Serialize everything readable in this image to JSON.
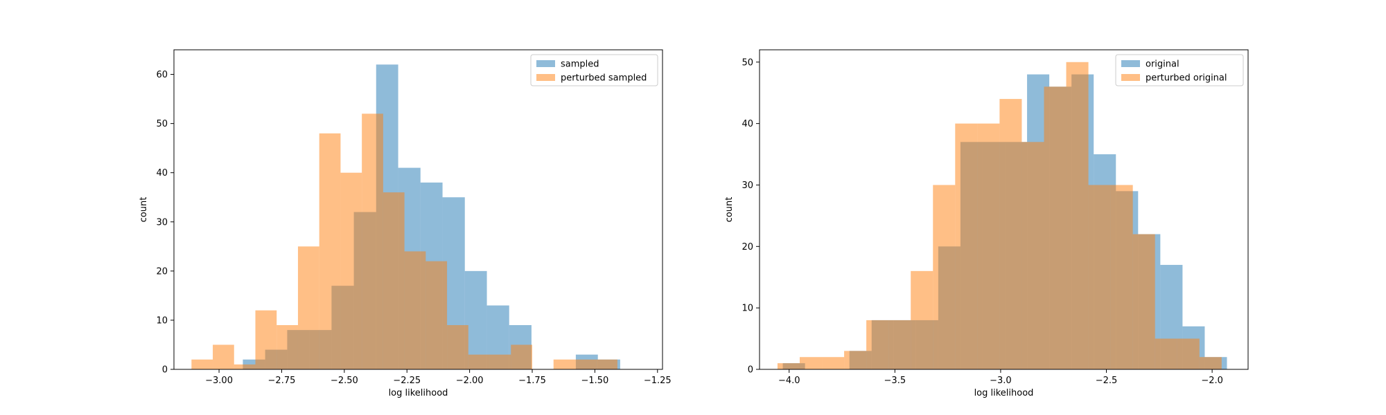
{
  "chart_data": [
    {
      "type": "bar",
      "xlabel": "log likelihood",
      "ylabel": "count",
      "xlim": [
        -3.18,
        -1.23
      ],
      "ylim": [
        0,
        65
      ],
      "xticks": [
        -3.0,
        -2.75,
        -2.5,
        -2.25,
        -2.0,
        -1.75,
        -1.5,
        -1.25
      ],
      "xtick_labels": [
        "−3.00",
        "−2.75",
        "−2.50",
        "−2.25",
        "−2.00",
        "−1.75",
        "−1.50",
        "−1.25"
      ],
      "yticks": [
        0,
        10,
        20,
        30,
        40,
        50,
        60
      ],
      "ytick_labels": [
        "0",
        "10",
        "20",
        "30",
        "40",
        "50",
        "60"
      ],
      "legend_position": "top-right",
      "series": [
        {
          "name": "sampled",
          "color": "#1f77b4",
          "bin_edges": [
            -2.905,
            -2.816,
            -2.728,
            -2.639,
            -2.551,
            -2.462,
            -2.373,
            -2.285,
            -2.196,
            -2.108,
            -2.019,
            -1.931,
            -1.842,
            -1.753,
            -1.665,
            -1.576,
            -1.488,
            -1.399,
            -1.31
          ],
          "values": [
            2,
            4,
            8,
            8,
            17,
            32,
            62,
            41,
            38,
            35,
            20,
            13,
            9,
            0,
            0,
            3,
            2,
            0
          ]
        },
        {
          "name": "perturbed sampled",
          "color": "#ff7f0e",
          "bin_edges": [
            -3.11,
            -3.025,
            -2.94,
            -2.855,
            -2.77,
            -2.685,
            -2.6,
            -2.515,
            -2.43,
            -2.345,
            -2.26,
            -2.175,
            -2.09,
            -2.005,
            -1.92,
            -1.835,
            -1.75,
            -1.665,
            -1.58,
            -1.495,
            -1.41
          ],
          "values": [
            2,
            5,
            1,
            12,
            9,
            25,
            48,
            40,
            52,
            36,
            24,
            22,
            9,
            3,
            3,
            5,
            0,
            2,
            2,
            2
          ]
        }
      ]
    },
    {
      "type": "bar",
      "xlabel": "log likelihood",
      "ylabel": "count",
      "xlim": [
        -4.14,
        -1.83
      ],
      "ylim": [
        0,
        52
      ],
      "xticks": [
        -4.0,
        -3.5,
        -3.0,
        -2.5,
        -2.0
      ],
      "xtick_labels": [
        "−4.0",
        "−3.5",
        "−3.0",
        "−2.5",
        "−2.0"
      ],
      "yticks": [
        0,
        10,
        20,
        30,
        40,
        50
      ],
      "ytick_labels": [
        "0",
        "10",
        "20",
        "30",
        "40",
        "50"
      ],
      "legend_position": "top-right",
      "series": [
        {
          "name": "original",
          "color": "#1f77b4",
          "bin_edges": [
            -4.03,
            -3.925,
            -3.82,
            -3.715,
            -3.61,
            -3.505,
            -3.4,
            -3.295,
            -3.19,
            -3.085,
            -2.98,
            -2.875,
            -2.77,
            -2.665,
            -2.56,
            -2.455,
            -2.35,
            -2.245,
            -2.14,
            -2.035,
            -1.93
          ],
          "values": [
            1,
            0,
            0,
            3,
            8,
            8,
            8,
            20,
            37,
            37,
            37,
            48,
            46,
            48,
            35,
            29,
            22,
            17,
            7,
            2
          ]
        },
        {
          "name": "perturbed original",
          "color": "#ff7f0e",
          "bin_edges": [
            -4.055,
            -3.95,
            -3.845,
            -3.74,
            -3.635,
            -3.53,
            -3.425,
            -3.32,
            -3.215,
            -3.11,
            -3.005,
            -2.9,
            -2.795,
            -2.69,
            -2.585,
            -2.48,
            -2.375,
            -2.27,
            -2.165,
            -2.06,
            -1.955
          ],
          "values": [
            1,
            2,
            2,
            3,
            8,
            8,
            16,
            30,
            40,
            40,
            44,
            37,
            46,
            50,
            30,
            30,
            22,
            5,
            5,
            2
          ]
        }
      ]
    }
  ]
}
